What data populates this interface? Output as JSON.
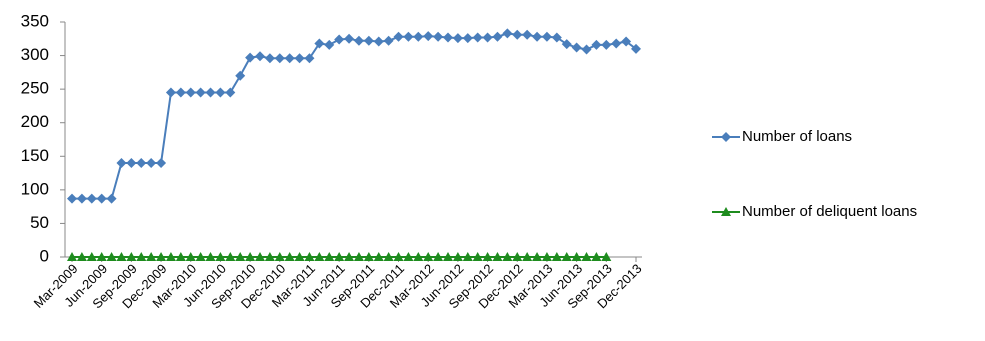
{
  "chart_data": {
    "type": "line",
    "categories": [
      "Mar-2009",
      null,
      null,
      "Jun-2009",
      null,
      null,
      "Sep-2009",
      null,
      null,
      "Dec-2009",
      null,
      null,
      "Mar-2010",
      null,
      null,
      "Jun-2010",
      null,
      null,
      "Sep-2010",
      null,
      null,
      "Dec-2010",
      null,
      null,
      "Mar-2011",
      null,
      null,
      "Jun-2011",
      null,
      null,
      "Sep-2011",
      null,
      null,
      "Dec-2011",
      null,
      null,
      "Mar-2012",
      null,
      null,
      "Jun-2012",
      null,
      null,
      "Sep-2012",
      null,
      null,
      "Dec-2012",
      null,
      null,
      "Mar-2013",
      null,
      null,
      "Jun-2013",
      null,
      null,
      "Sep-2013",
      null,
      null,
      "Dec-2013"
    ],
    "series": [
      {
        "name": "Number of loans",
        "color": "#4a7ebb",
        "marker": "diamond",
        "values": [
          87,
          87,
          87,
          87,
          87,
          140,
          140,
          140,
          140,
          140,
          245,
          245,
          245,
          245,
          245,
          245,
          245,
          270,
          297,
          299,
          296,
          296,
          296,
          296,
          296,
          318,
          316,
          324,
          325,
          322,
          322,
          321,
          322,
          328,
          328,
          328,
          329,
          328,
          327,
          326,
          326,
          327,
          327,
          328,
          333,
          331,
          331,
          328,
          328,
          327,
          317,
          312,
          309,
          316,
          316,
          318,
          321,
          310
        ]
      },
      {
        "name": "Number of deliquent loans",
        "color": "#1e8c1e",
        "marker": "triangle",
        "values": [
          0,
          0,
          0,
          0,
          0,
          0,
          0,
          0,
          0,
          0,
          0,
          0,
          0,
          0,
          0,
          0,
          0,
          0,
          0,
          0,
          0,
          0,
          0,
          0,
          0,
          0,
          0,
          0,
          0,
          0,
          0,
          0,
          0,
          0,
          0,
          0,
          0,
          0,
          0,
          0,
          0,
          0,
          0,
          0,
          0,
          0,
          0,
          0,
          0,
          0,
          0,
          0,
          0,
          0,
          0,
          null,
          null,
          null
        ]
      }
    ],
    "ylim": [
      0,
      350
    ],
    "yticks": [
      0,
      50,
      100,
      150,
      200,
      250,
      300,
      350
    ],
    "grid": false,
    "legend": "right"
  }
}
